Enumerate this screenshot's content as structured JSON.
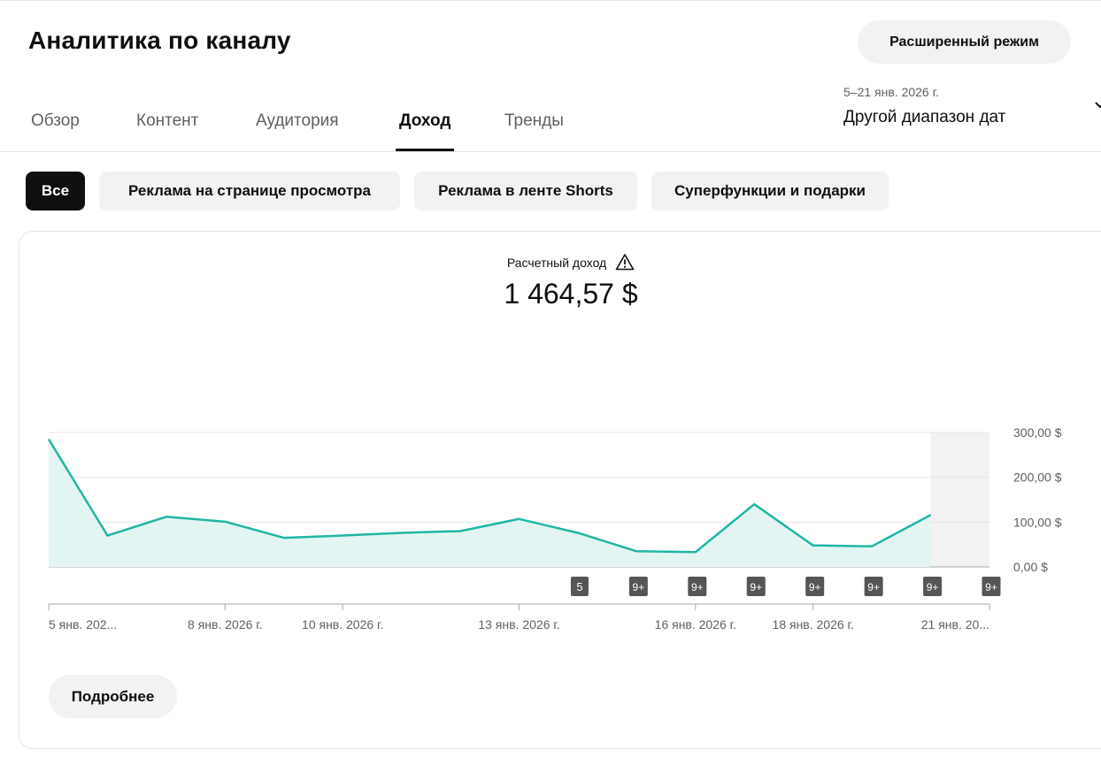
{
  "header": {
    "title": "Аналитика по каналу",
    "advanced_mode_label": "Расширенный режим"
  },
  "tabs": [
    {
      "label": "Обзор",
      "active": false
    },
    {
      "label": "Контент",
      "active": false
    },
    {
      "label": "Аудитория",
      "active": false
    },
    {
      "label": "Доход",
      "active": true
    },
    {
      "label": "Тренды",
      "active": false
    }
  ],
  "date_range": {
    "range_text": "5–21 янв. 2026 г.",
    "label": "Другой диапазон дат"
  },
  "filter_chips": [
    {
      "label": "Все",
      "active": true
    },
    {
      "label": "Реклама на странице просмотра",
      "active": false
    },
    {
      "label": "Реклама в ленте Shorts",
      "active": false
    },
    {
      "label": "Суперфункции и подарки",
      "active": false
    }
  ],
  "metric": {
    "label": "Расчетный доход",
    "value": "1 464,57 $",
    "warning_icon": "warning-triangle-icon"
  },
  "chart_data": {
    "type": "area",
    "x": [
      "5 янв.",
      "6 янв.",
      "7 янв.",
      "8 янв.",
      "9 янв.",
      "10 янв.",
      "11 янв.",
      "12 янв.",
      "13 янв.",
      "14 янв.",
      "15 янв.",
      "16 янв.",
      "17 янв.",
      "18 янв.",
      "19 янв.",
      "20 янв.",
      "21 янв."
    ],
    "series": [
      {
        "values": [
          285,
          70,
          112,
          101,
          65,
          70,
          76,
          80,
          107,
          76,
          35,
          33,
          140,
          48,
          46,
          116,
          null
        ]
      }
    ],
    "ylim": [
      0,
      300
    ],
    "y_ticks": [
      "0,00 $",
      "100,00 $",
      "200,00 $",
      "300,00 $"
    ],
    "x_tick_labels": [
      {
        "label": "5 янв. 202...",
        "index": 0
      },
      {
        "label": "8 янв. 2026 г.",
        "index": 3
      },
      {
        "label": "10 янв. 2026 г.",
        "index": 5
      },
      {
        "label": "13 янв. 2026 г.",
        "index": 8
      },
      {
        "label": "16 янв. 2026 г.",
        "index": 11
      },
      {
        "label": "18 янв. 2026 г.",
        "index": 13
      },
      {
        "label": "21 янв. 20...",
        "index": 16
      }
    ],
    "event_badges": [
      {
        "label": "5",
        "index": 9
      },
      {
        "label": "9+",
        "index": 10
      },
      {
        "label": "9+",
        "index": 11
      },
      {
        "label": "9+",
        "index": 12
      },
      {
        "label": "9+",
        "index": 13
      },
      {
        "label": "9+",
        "index": 14
      },
      {
        "label": "9+",
        "index": 15
      },
      {
        "label": "9+",
        "index": 16
      }
    ],
    "shaded_incomplete_index": 16,
    "line_color": "#1fb6a4",
    "fill_color": "#e3f5f2",
    "grid": true
  },
  "more_button_label": "Подробнее"
}
